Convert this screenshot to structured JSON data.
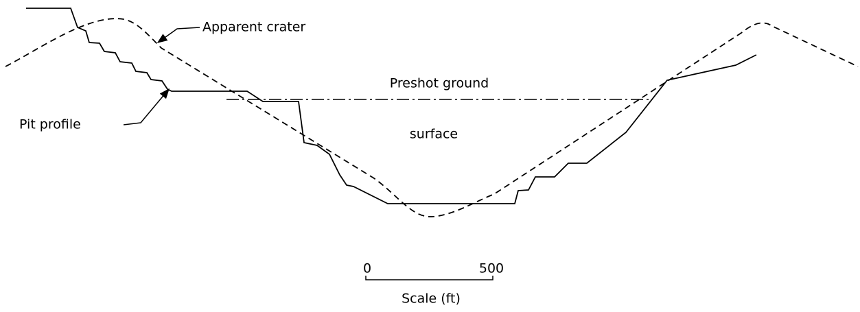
{
  "labels": {
    "apparent_crater": "Apparent crater",
    "pit_profile": "Pit profile",
    "preshot_line1": "Preshot ground",
    "preshot_line2": "surface"
  },
  "scale": {
    "start": "0",
    "end": "500",
    "caption": "Scale (ft)"
  }
}
